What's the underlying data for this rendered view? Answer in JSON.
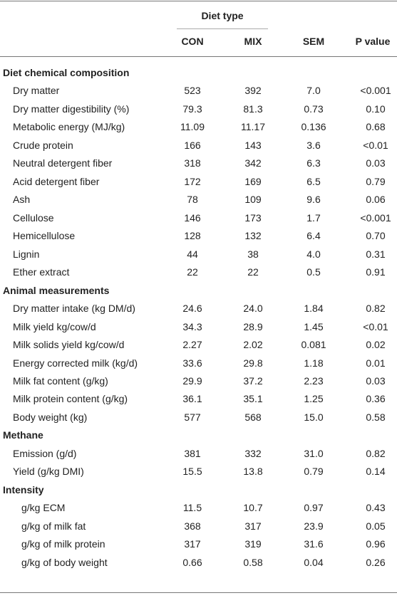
{
  "table": {
    "group_header": "Diet type",
    "columns": [
      "CON",
      "MIX",
      "SEM",
      "P value"
    ],
    "sections": [
      {
        "title": "Diet chemical composition",
        "rows": [
          [
            "Dry matter",
            "523",
            "392",
            "7.0",
            "<0.001"
          ],
          [
            "Dry matter digestibility (%)",
            "79.3",
            "81.3",
            "0.73",
            "0.10"
          ],
          [
            "Metabolic energy (MJ/kg)",
            "11.09",
            "11.17",
            "0.136",
            "0.68"
          ],
          [
            "Crude protein",
            "166",
            "143",
            "3.6",
            "<0.01"
          ],
          [
            "Neutral detergent fiber",
            "318",
            "342",
            "6.3",
            "0.03"
          ],
          [
            "Acid detergent fiber",
            "172",
            "169",
            "6.5",
            "0.79"
          ],
          [
            "Ash",
            "78",
            "109",
            "9.6",
            "0.06"
          ],
          [
            "Cellulose",
            "146",
            "173",
            "1.7",
            "<0.001"
          ],
          [
            "Hemicellulose",
            "128",
            "132",
            "6.4",
            "0.70"
          ],
          [
            "Lignin",
            "44",
            "38",
            "4.0",
            "0.31"
          ],
          [
            "Ether extract",
            "22",
            "22",
            "0.5",
            "0.91"
          ]
        ]
      },
      {
        "title": "Animal measurements",
        "rows": [
          [
            "Dry matter intake (kg DM/d)",
            "24.6",
            "24.0",
            "1.84",
            "0.82"
          ],
          [
            "Milk yield kg/cow/d",
            "34.3",
            "28.9",
            "1.45",
            "<0.01"
          ],
          [
            "Milk solids yield kg/cow/d",
            "2.27",
            "2.02",
            "0.081",
            "0.02"
          ],
          [
            "Energy corrected milk (kg/d)",
            "33.6",
            "29.8",
            "1.18",
            "0.01"
          ],
          [
            "Milk fat content (g/kg)",
            "29.9",
            "37.2",
            "2.23",
            "0.03"
          ],
          [
            "Milk protein content (g/kg)",
            "36.1",
            "35.1",
            "1.25",
            "0.36"
          ],
          [
            "Body weight (kg)",
            "577",
            "568",
            "15.0",
            "0.58"
          ]
        ]
      },
      {
        "title": "Methane",
        "rows": [
          [
            "Emission (g/d)",
            "381",
            "332",
            "31.0",
            "0.82"
          ],
          [
            "Yield (g/kg DMI)",
            "15.5",
            "13.8",
            "0.79",
            "0.14"
          ]
        ]
      },
      {
        "title": "Intensity",
        "rows": [
          [
            "g/kg ECM",
            "11.5",
            "10.7",
            "0.97",
            "0.43"
          ],
          [
            "g/kg of milk fat",
            "368",
            "317",
            "23.9",
            "0.05"
          ],
          [
            "g/kg of milk protein",
            "317",
            "319",
            "31.6",
            "0.96"
          ],
          [
            "g/kg of body weight",
            "0.66",
            "0.58",
            "0.04",
            "0.26"
          ]
        ]
      }
    ]
  }
}
